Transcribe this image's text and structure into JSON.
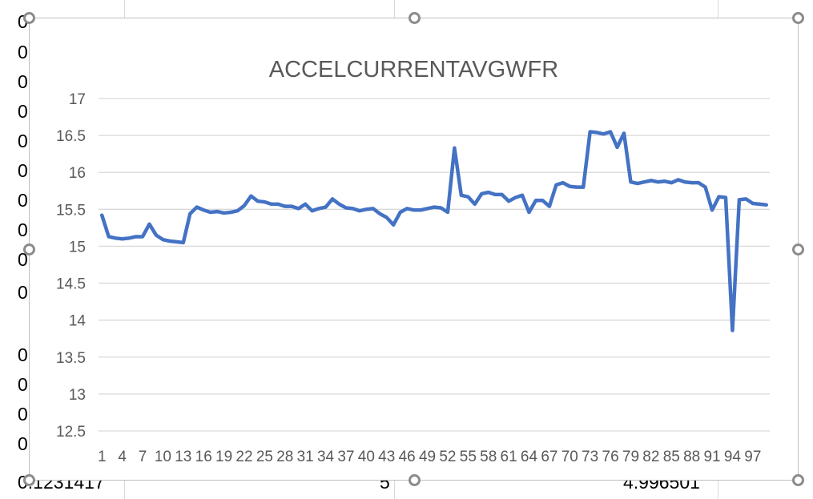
{
  "sheet": {
    "cells": [
      {
        "id": "r1",
        "text": "0"
      },
      {
        "id": "r2",
        "text": "0"
      },
      {
        "id": "r3",
        "text": "0"
      },
      {
        "id": "r4",
        "text": "0"
      },
      {
        "id": "r5",
        "text": "0"
      },
      {
        "id": "r6",
        "text": "0"
      },
      {
        "id": "r7",
        "text": "0"
      },
      {
        "id": "r8",
        "text": "0"
      },
      {
        "id": "r9",
        "text": "0"
      },
      {
        "id": "r10",
        "text": "0"
      },
      {
        "id": "r11",
        "text": "0"
      },
      {
        "id": "r12",
        "text": "0"
      },
      {
        "id": "r13",
        "text": "0"
      },
      {
        "id": "r14",
        "text": "0"
      }
    ],
    "bottom_row": {
      "a": "0.1231417",
      "b": "5",
      "c": "4.996501"
    }
  },
  "chart_data": {
    "type": "line",
    "title": "ACCELCURRENTAVGWFR",
    "xlabel": "",
    "ylabel": "",
    "ylim": [
      12.5,
      17
    ],
    "yticks": [
      12.5,
      13,
      13.5,
      14,
      14.5,
      15,
      15.5,
      16,
      16.5,
      17
    ],
    "x": [
      1,
      2,
      3,
      4,
      5,
      6,
      7,
      8,
      9,
      10,
      11,
      12,
      13,
      14,
      15,
      16,
      17,
      18,
      19,
      20,
      21,
      22,
      23,
      24,
      25,
      26,
      27,
      28,
      29,
      30,
      31,
      32,
      33,
      34,
      35,
      36,
      37,
      38,
      39,
      40,
      41,
      42,
      43,
      44,
      45,
      46,
      47,
      48,
      49,
      50,
      51,
      52,
      53,
      54,
      55,
      56,
      57,
      58,
      59,
      60,
      61,
      62,
      63,
      64,
      65,
      66,
      67,
      68,
      69,
      70,
      71,
      72,
      73,
      74,
      75,
      76,
      77,
      78,
      79,
      80,
      81,
      82,
      83,
      84,
      85,
      86,
      87,
      88,
      89,
      90,
      91,
      92,
      93,
      94,
      95,
      96,
      97,
      98,
      99
    ],
    "xticks": [
      "1",
      "4",
      "7",
      "10",
      "13",
      "16",
      "19",
      "22",
      "25",
      "28",
      "31",
      "34",
      "37",
      "40",
      "43",
      "46",
      "49",
      "52",
      "55",
      "58",
      "61",
      "64",
      "67",
      "70",
      "73",
      "76",
      "79",
      "82",
      "85",
      "88",
      "91",
      "94",
      "97"
    ],
    "grid": true,
    "legend": "none",
    "color": "#4472c4",
    "series": [
      {
        "values": [
          15.42,
          15.13,
          15.11,
          15.1,
          15.11,
          15.13,
          15.13,
          15.3,
          15.15,
          15.09,
          15.07,
          15.06,
          15.05,
          15.44,
          15.53,
          15.49,
          15.46,
          15.47,
          15.45,
          15.46,
          15.48,
          15.55,
          15.68,
          15.61,
          15.6,
          15.57,
          15.57,
          15.54,
          15.54,
          15.51,
          15.57,
          15.48,
          15.51,
          15.53,
          15.64,
          15.57,
          15.52,
          15.51,
          15.48,
          15.5,
          15.51,
          15.44,
          15.39,
          15.29,
          15.46,
          15.51,
          15.49,
          15.49,
          15.51,
          15.53,
          15.52,
          15.46,
          16.33,
          15.69,
          15.67,
          15.57,
          15.71,
          15.73,
          15.7,
          15.7,
          15.61,
          15.66,
          15.69,
          15.46,
          15.62,
          15.62,
          15.54,
          15.83,
          15.86,
          15.81,
          15.8,
          15.8,
          16.55,
          16.54,
          16.52,
          16.55,
          16.34,
          16.53,
          15.87,
          15.85,
          15.87,
          15.89,
          15.87,
          15.88,
          15.86,
          15.9,
          15.87,
          15.86,
          15.86,
          15.8,
          15.49,
          15.67,
          15.66,
          13.86,
          15.63,
          15.64,
          15.58,
          15.57,
          15.56
        ]
      }
    ]
  }
}
